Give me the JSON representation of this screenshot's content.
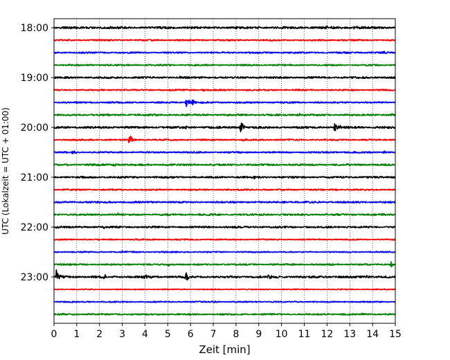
{
  "chart_data": {
    "type": "line",
    "title": "",
    "xlabel": "Zeit  [min]",
    "ylabel": "UTC (Lokalzeit = UTC + 01:00)",
    "xlim": [
      0,
      15
    ],
    "x_ticks": [
      0,
      1,
      2,
      3,
      4,
      5,
      6,
      7,
      8,
      9,
      10,
      11,
      12,
      13,
      14,
      15
    ],
    "y_tick_labels": [
      "18:00",
      "19:00",
      "20:00",
      "21:00",
      "22:00",
      "23:00"
    ],
    "trace_interval_minutes": 15,
    "grid": {
      "vertical_dotted": true,
      "horizontal": false
    },
    "color_cycle": [
      "#000000",
      "#ff0000",
      "#0000ff",
      "#008000"
    ],
    "traces": [
      {
        "start": "18:00",
        "color": "#000000",
        "noise": 0.8,
        "events": [
          {
            "t": 13.2,
            "amp": 2.5
          },
          {
            "t": 12.0,
            "amp": 1.6
          },
          {
            "t": 9.0,
            "amp": 1.4
          },
          {
            "t": 2.5,
            "amp": 1.2
          }
        ]
      },
      {
        "start": "18:15",
        "color": "#ff0000",
        "noise": 0.6,
        "events": []
      },
      {
        "start": "18:30",
        "color": "#0000ff",
        "noise": 0.6,
        "events": [
          {
            "t": 14.5,
            "amp": 1.5
          }
        ]
      },
      {
        "start": "18:45",
        "color": "#008000",
        "noise": 0.6,
        "events": []
      },
      {
        "start": "19:00",
        "color": "#000000",
        "noise": 0.7,
        "events": [
          {
            "t": 5.5,
            "amp": 1.2
          }
        ]
      },
      {
        "start": "19:15",
        "color": "#ff0000",
        "noise": 0.6,
        "events": [
          {
            "t": 6.5,
            "amp": 1.2
          }
        ]
      },
      {
        "start": "19:30",
        "color": "#0000ff",
        "noise": 0.6,
        "events": [
          {
            "t": 5.8,
            "amp": 6.0
          },
          {
            "t": 6.1,
            "amp": 3.0
          }
        ]
      },
      {
        "start": "19:45",
        "color": "#008000",
        "noise": 0.7,
        "events": [
          {
            "t": 10.7,
            "amp": 2.5
          },
          {
            "t": 14.8,
            "amp": 1.5
          }
        ]
      },
      {
        "start": "20:00",
        "color": "#000000",
        "noise": 0.8,
        "events": [
          {
            "t": 8.2,
            "amp": 7.0
          },
          {
            "t": 12.3,
            "amp": 6.0
          },
          {
            "t": 12.6,
            "amp": 2.0
          },
          {
            "t": 5.8,
            "amp": 1.5
          }
        ]
      },
      {
        "start": "20:15",
        "color": "#ff0000",
        "noise": 0.6,
        "events": [
          {
            "t": 3.3,
            "amp": 6.0
          },
          {
            "t": 8.3,
            "amp": 1.2
          }
        ]
      },
      {
        "start": "20:30",
        "color": "#0000ff",
        "noise": 0.6,
        "events": [
          {
            "t": 0.8,
            "amp": 1.5
          },
          {
            "t": 14.5,
            "amp": 1.3
          }
        ]
      },
      {
        "start": "20:45",
        "color": "#008000",
        "noise": 0.7,
        "events": [
          {
            "t": 0.5,
            "amp": 1.5
          },
          {
            "t": 2.6,
            "amp": 1.5
          }
        ]
      },
      {
        "start": "21:00",
        "color": "#000000",
        "noise": 0.7,
        "events": [
          {
            "t": 8.8,
            "amp": 1.4
          }
        ]
      },
      {
        "start": "21:15",
        "color": "#ff0000",
        "noise": 0.6,
        "events": [
          {
            "t": 12.4,
            "amp": 1.1
          }
        ]
      },
      {
        "start": "21:30",
        "color": "#0000ff",
        "noise": 0.7,
        "events": [
          {
            "t": 10.0,
            "amp": 1.5
          },
          {
            "t": 11.5,
            "amp": 1.2
          }
        ]
      },
      {
        "start": "21:45",
        "color": "#008000",
        "noise": 0.7,
        "events": [
          {
            "t": 2.8,
            "amp": 1.3
          },
          {
            "t": 14.5,
            "amp": 1.2
          }
        ]
      },
      {
        "start": "22:00",
        "color": "#000000",
        "noise": 0.7,
        "events": [
          {
            "t": 0.1,
            "amp": 1.5
          },
          {
            "t": 2.2,
            "amp": 1.2
          }
        ]
      },
      {
        "start": "22:15",
        "color": "#ff0000",
        "noise": 0.5,
        "events": []
      },
      {
        "start": "22:30",
        "color": "#0000ff",
        "noise": 0.5,
        "events": [
          {
            "t": 3.0,
            "amp": 1.1
          }
        ]
      },
      {
        "start": "22:45",
        "color": "#008000",
        "noise": 0.6,
        "events": [
          {
            "t": 0.3,
            "amp": 1.8
          },
          {
            "t": 14.8,
            "amp": 3.0
          },
          {
            "t": 5.0,
            "amp": 1.3
          }
        ]
      },
      {
        "start": "23:00",
        "color": "#000000",
        "noise": 0.8,
        "events": [
          {
            "t": 0.1,
            "amp": 6.5
          },
          {
            "t": 4.0,
            "amp": 5.0
          },
          {
            "t": 5.8,
            "amp": 5.0
          },
          {
            "t": 2.2,
            "amp": 2.5
          },
          {
            "t": 9.4,
            "amp": 2.5
          },
          {
            "t": 13.7,
            "amp": 1.5
          }
        ]
      },
      {
        "start": "23:15",
        "color": "#ff0000",
        "noise": 0.4,
        "events": []
      },
      {
        "start": "23:30",
        "color": "#0000ff",
        "noise": 0.5,
        "events": [
          {
            "t": 7.0,
            "amp": 1.1
          }
        ]
      },
      {
        "start": "23:45",
        "color": "#008000",
        "noise": 0.6,
        "events": [
          {
            "t": 1.5,
            "amp": 1.2
          },
          {
            "t": 13.5,
            "amp": 1.1
          }
        ]
      }
    ]
  }
}
